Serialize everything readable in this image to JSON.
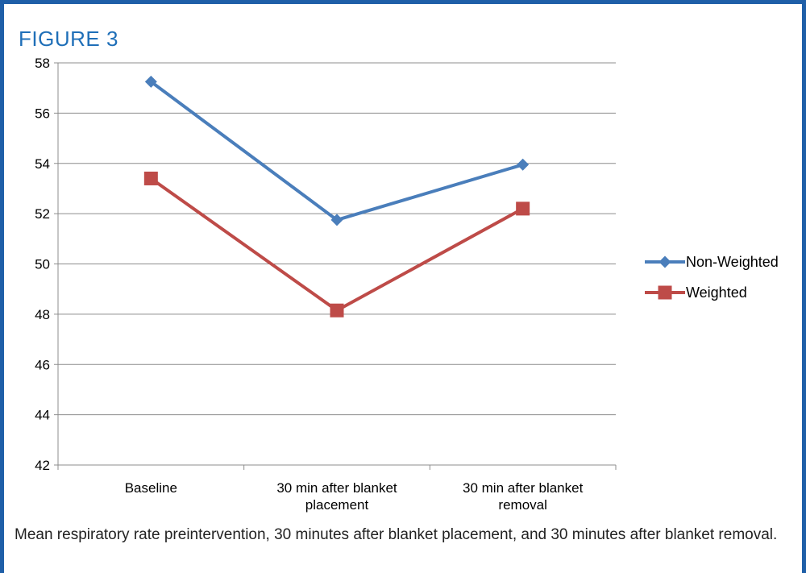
{
  "figure_label": "FIGURE 3",
  "caption": "Mean respiratory rate preintervention, 30 minutes after blanket placement, and 30 minutes after blanket removal.",
  "colors": {
    "frame": "#1f5fa8",
    "label": "#1f6fb8",
    "non_weighted": "#4a7ebb",
    "weighted": "#be4b48",
    "grid": "#8c8c8c"
  },
  "chart_data": {
    "type": "line",
    "title": "",
    "xlabel": "",
    "ylabel": "",
    "categories": [
      [
        "Baseline"
      ],
      [
        "30 min after blanket",
        "placement"
      ],
      [
        "30 min after blanket",
        "removal"
      ]
    ],
    "ylim": [
      42,
      58
    ],
    "yticks": [
      "42",
      "44",
      "46",
      "48",
      "50",
      "52",
      "54",
      "56",
      "58"
    ],
    "grid": true,
    "legend_position": "right",
    "series": [
      {
        "name": "Non-Weighted",
        "marker": "diamond",
        "values": [
          57.25,
          51.75,
          53.95
        ]
      },
      {
        "name": "Weighted",
        "marker": "square",
        "values": [
          53.4,
          48.15,
          52.2
        ]
      }
    ]
  }
}
